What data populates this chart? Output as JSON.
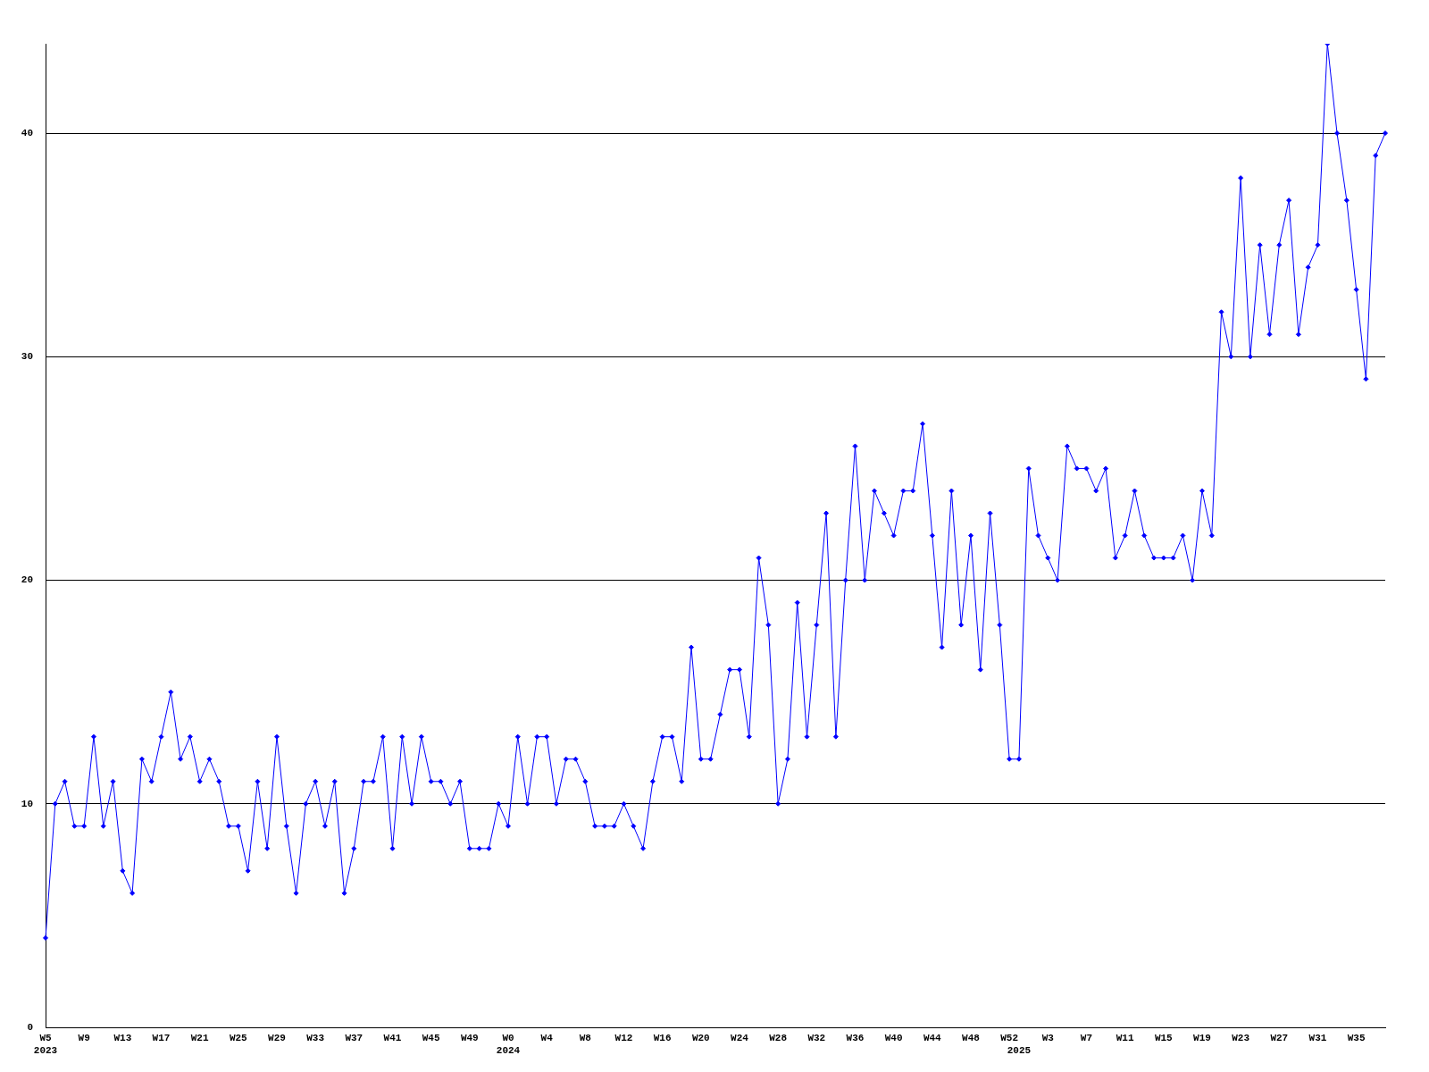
{
  "chart_data": {
    "type": "line",
    "categories": [
      "W5\n2023",
      null,
      null,
      null,
      "W9",
      null,
      null,
      null,
      "W13",
      null,
      null,
      null,
      "W17",
      null,
      null,
      null,
      "W21",
      null,
      null,
      null,
      "W25",
      null,
      null,
      null,
      "W29",
      null,
      null,
      null,
      "W33",
      null,
      null,
      null,
      "W37",
      null,
      null,
      null,
      "W41",
      null,
      null,
      null,
      "W45",
      null,
      null,
      null,
      "W49",
      null,
      null,
      null,
      "W0\n2024",
      null,
      null,
      null,
      "W4",
      null,
      null,
      null,
      "W8",
      null,
      null,
      null,
      "W12",
      null,
      null,
      null,
      "W16",
      null,
      null,
      null,
      "W20",
      null,
      null,
      null,
      "W24",
      null,
      null,
      null,
      "W28",
      null,
      null,
      null,
      "W32",
      null,
      null,
      null,
      "W36",
      null,
      null,
      null,
      "W40",
      null,
      null,
      null,
      "W44",
      null,
      null,
      null,
      "W48",
      null,
      null,
      null,
      "W52",
      "\n2025",
      null,
      null,
      "W3",
      null,
      null,
      null,
      "W7",
      null,
      null,
      null,
      "W11",
      null,
      null,
      null,
      "W15",
      null,
      null,
      null,
      "W19",
      null,
      null,
      null,
      "W23",
      null,
      null,
      null,
      "W27",
      null,
      null,
      null,
      "W31",
      null,
      null,
      null,
      "W35",
      null,
      null,
      null
    ],
    "values": [
      4,
      10,
      11,
      9,
      9,
      13,
      9,
      11,
      7,
      6,
      12,
      11,
      13,
      15,
      12,
      13,
      11,
      12,
      11,
      9,
      9,
      7,
      11,
      8,
      13,
      9,
      6,
      10,
      11,
      9,
      11,
      6,
      8,
      11,
      11,
      13,
      8,
      13,
      10,
      13,
      11,
      11,
      10,
      11,
      8,
      8,
      8,
      10,
      9,
      13,
      10,
      13,
      13,
      10,
      12,
      12,
      11,
      9,
      9,
      9,
      10,
      9,
      8,
      11,
      13,
      13,
      11,
      17,
      12,
      12,
      14,
      16,
      16,
      13,
      21,
      18,
      10,
      12,
      19,
      13,
      18,
      23,
      13,
      20,
      26,
      20,
      24,
      23,
      22,
      24,
      24,
      27,
      22,
      17,
      24,
      18,
      22,
      16,
      23,
      18,
      12,
      12,
      25,
      22,
      21,
      20,
      26,
      25,
      25,
      24,
      25,
      21,
      22,
      24,
      22,
      21,
      21,
      21,
      22,
      20,
      24,
      22,
      32,
      30,
      38,
      30,
      35,
      31,
      35,
      37,
      31,
      34,
      35,
      44,
      40,
      37,
      33,
      29,
      39,
      40
    ],
    "color": "#0000ff",
    "ylim": [
      0,
      44
    ],
    "yticks": [
      0,
      10,
      20,
      30,
      40
    ],
    "grid": "y",
    "marker": "diamond"
  }
}
